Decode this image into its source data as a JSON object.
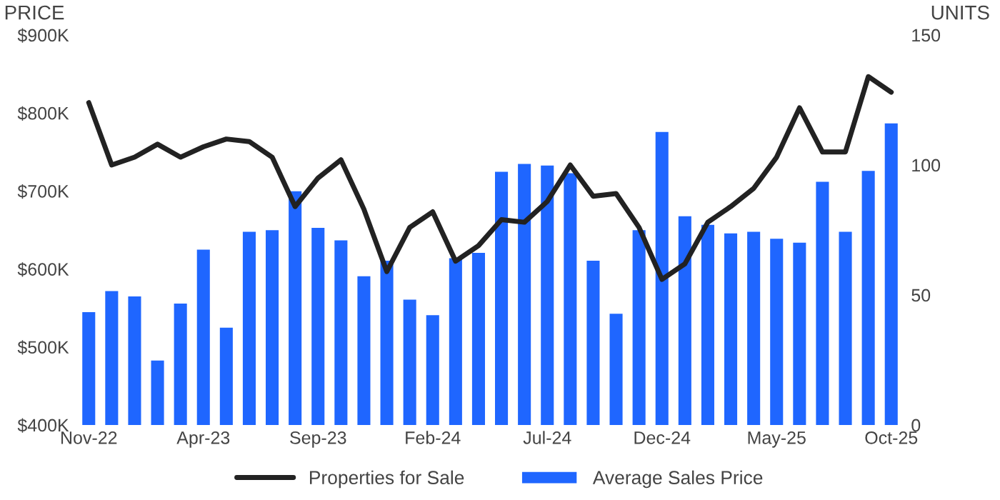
{
  "chart_data": {
    "type": "bar",
    "ylabel": "PRICE",
    "y2label": "UNITS",
    "categories": [
      "Nov-22",
      null,
      null,
      null,
      null,
      "Apr-23",
      null,
      null,
      null,
      null,
      "Sep-23",
      null,
      null,
      null,
      null,
      "Feb-24",
      null,
      null,
      null,
      null,
      "Jul-24",
      null,
      null,
      null,
      null,
      "Dec-24",
      null,
      null,
      null,
      null,
      "May-25",
      null,
      null,
      null,
      null,
      "Oct-25"
    ],
    "series": [
      {
        "name": "Average Sales Price",
        "color": "#1f66ff",
        "values": [
          546000,
          573000,
          566000,
          484000,
          557000,
          626000,
          526000,
          649000,
          651000,
          701000,
          654000,
          638000,
          592000,
          612000,
          562000,
          542000,
          615000,
          622000,
          726000,
          736000,
          734000,
          724000,
          612000,
          544000,
          651000,
          777000,
          669000,
          658000,
          647000,
          649000,
          640000,
          635000,
          713000,
          649000,
          727000,
          788000
        ]
      },
      {
        "name": "Properties for Sale",
        "type": "line",
        "axis": "y2",
        "color": "#222222",
        "values": [
          124,
          100,
          103,
          108,
          103,
          107,
          110,
          109,
          103,
          84,
          95,
          102,
          83,
          59,
          76,
          82,
          63,
          69,
          79,
          78,
          86,
          100,
          88,
          89,
          76,
          56,
          62,
          78,
          84,
          91,
          103,
          122,
          105,
          105,
          134,
          128
        ]
      }
    ],
    "ylim": [
      400000,
      900000
    ],
    "yticks": [
      {
        "value": 400000,
        "label": "$400K"
      },
      {
        "value": 500000,
        "label": "$500K"
      },
      {
        "value": 600000,
        "label": "$600K"
      },
      {
        "value": 700000,
        "label": "$700K"
      },
      {
        "value": 800000,
        "label": "$800K"
      },
      {
        "value": 900000,
        "label": "$900K"
      }
    ],
    "y2lim": [
      0,
      150
    ],
    "y2ticks": [
      0,
      50,
      100,
      150
    ],
    "legend": "bottom",
    "grid": false,
    "line_style": "solid",
    "marker": "none"
  }
}
